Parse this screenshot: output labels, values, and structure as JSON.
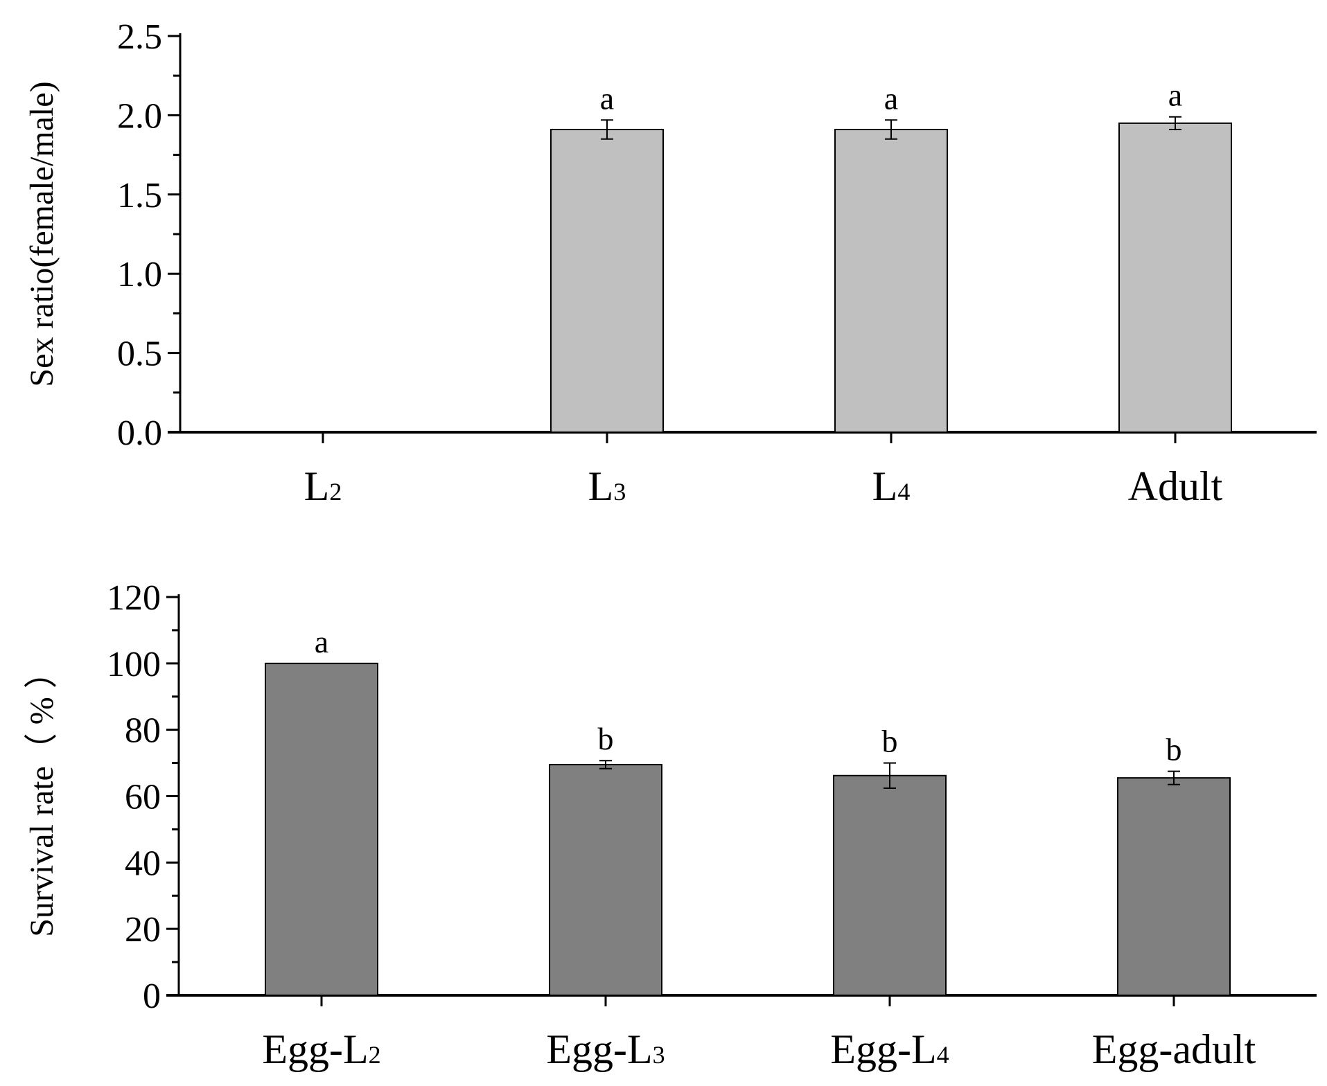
{
  "colors": {
    "panel1_bar": "#c0c0c0",
    "panel2_bar": "#808080",
    "axis": "#000000"
  },
  "chart_data": [
    {
      "type": "bar",
      "panel": "top",
      "title": "",
      "xlabel": "",
      "ylabel": "Sex ratio(female/male)",
      "ylim": [
        0,
        2.5
      ],
      "y_ticks": [
        "0.0",
        "0.5",
        "1.0",
        "1.5",
        "2.0",
        "2.5"
      ],
      "y_tick_values": [
        0,
        0.5,
        1.0,
        1.5,
        2.0,
        2.5
      ],
      "categories": [
        {
          "main": "L",
          "sub": "2"
        },
        {
          "main": "L",
          "sub": "3"
        },
        {
          "main": "L",
          "sub": "4"
        },
        {
          "main": "Adult",
          "sub": ""
        }
      ],
      "values": [
        null,
        1.91,
        1.91,
        1.95
      ],
      "errors": [
        null,
        0.06,
        0.06,
        0.04
      ],
      "significance": [
        "",
        "a",
        "a",
        "a"
      ]
    },
    {
      "type": "bar",
      "panel": "bottom",
      "title": "",
      "xlabel": "",
      "ylabel": "Survival rate（ % ）",
      "ylim": [
        0,
        120
      ],
      "y_ticks": [
        "0",
        "20",
        "40",
        "60",
        "80",
        "100",
        "120"
      ],
      "y_tick_values": [
        0,
        20,
        40,
        60,
        80,
        100,
        120
      ],
      "categories": [
        {
          "main": "Egg-L",
          "sub": "2"
        },
        {
          "main": "Egg-L",
          "sub": "3"
        },
        {
          "main": "Egg-L",
          "sub": "4"
        },
        {
          "main": "Egg-adult",
          "sub": ""
        }
      ],
      "values": [
        100,
        69.5,
        66.2,
        65.5
      ],
      "errors": [
        0,
        1.2,
        3.8,
        2.0
      ],
      "significance": [
        "a",
        "b",
        "b",
        "b"
      ]
    }
  ]
}
